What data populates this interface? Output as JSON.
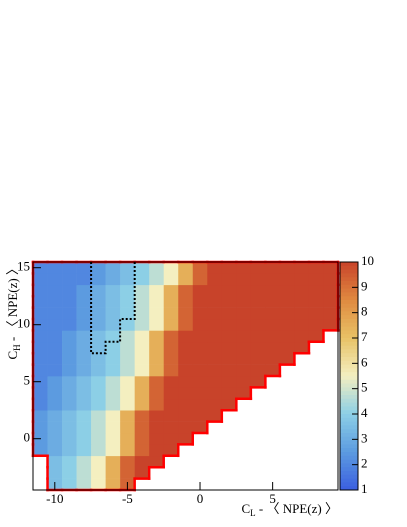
{
  "chart_data": {
    "type": "heatmap",
    "xlabel": {
      "main": "C",
      "sub": "L",
      "rest": " - 〈 NPE(z) 〉"
    },
    "ylabel": {
      "main": "C",
      "sub": "H",
      "rest": " - 〈 NPE(z) 〉"
    },
    "xbins": [
      -11.5,
      -10.5,
      -9.5,
      -8.5,
      -7.5,
      -6.5,
      -5.5,
      -4.5,
      -3.5,
      -2.5,
      -1.5,
      -0.5,
      0.5,
      1.5,
      2.5,
      3.5,
      4.5,
      5.5,
      6.5,
      7.5,
      8.5,
      9.5
    ],
    "ybins": [
      -4.5,
      -3.5,
      -2.5,
      -1.5,
      -0.5,
      0.5,
      1.5,
      2.5,
      3.5,
      4.5,
      5.5,
      6.5,
      7.5,
      8.5,
      9.5,
      10.5,
      11.5,
      12.5,
      13.5,
      14.5,
      15.5
    ],
    "z": [
      [
        null,
        3.5,
        4,
        4.7,
        5.5,
        7.5,
        9.3,
        null,
        null,
        null,
        null,
        null,
        null,
        null,
        null,
        null,
        null,
        null,
        null,
        null,
        null
      ],
      [
        null,
        3.5,
        4,
        4.7,
        5.5,
        7.5,
        9.3,
        10,
        null,
        null,
        null,
        null,
        null,
        null,
        null,
        null,
        null,
        null,
        null,
        null,
        null
      ],
      [
        null,
        3.5,
        4,
        4.7,
        5.5,
        7.5,
        9.3,
        10,
        10,
        null,
        null,
        null,
        null,
        null,
        null,
        null,
        null,
        null,
        null,
        null,
        null
      ],
      [
        2.5,
        3,
        3.5,
        4,
        4.7,
        5.5,
        7.5,
        9.3,
        10,
        10,
        null,
        null,
        null,
        null,
        null,
        null,
        null,
        null,
        null,
        null,
        null
      ],
      [
        2.5,
        3,
        3.5,
        4,
        4.7,
        5.5,
        7.5,
        9.3,
        10,
        10,
        10,
        null,
        null,
        null,
        null,
        null,
        null,
        null,
        null,
        null,
        null
      ],
      [
        2.5,
        3,
        3.5,
        4,
        4.7,
        5.5,
        7.5,
        9.3,
        10,
        10,
        10,
        10,
        null,
        null,
        null,
        null,
        null,
        null,
        null,
        null,
        null
      ],
      [
        2.5,
        3,
        3.5,
        4,
        4.7,
        5.5,
        7.5,
        9.3,
        10,
        10,
        10,
        10,
        10,
        null,
        null,
        null,
        null,
        null,
        null,
        null,
        null
      ],
      [
        2,
        2.5,
        3,
        3.5,
        4,
        4.7,
        5.5,
        7.5,
        9.3,
        10,
        10,
        10,
        10,
        10,
        null,
        null,
        null,
        null,
        null,
        null,
        null
      ],
      [
        2,
        2.5,
        3,
        3.5,
        4,
        4.7,
        5.5,
        7.5,
        9.3,
        10,
        10,
        10,
        10,
        10,
        10,
        null,
        null,
        null,
        null,
        null,
        null
      ],
      [
        2,
        2.5,
        3,
        3.5,
        4,
        4.7,
        5.5,
        7.5,
        9.3,
        10,
        10,
        10,
        10,
        10,
        10,
        10,
        null,
        null,
        null,
        null,
        null
      ],
      [
        2,
        2,
        2.5,
        3,
        3.5,
        4,
        4.7,
        5.5,
        7.5,
        9.3,
        10,
        10,
        10,
        10,
        10,
        10,
        10,
        null,
        null,
        null,
        null
      ],
      [
        2,
        2,
        2.5,
        3,
        3.5,
        4,
        4.7,
        5.5,
        7.5,
        9.3,
        10,
        10,
        10,
        10,
        10,
        10,
        10,
        10,
        null,
        null,
        null
      ],
      [
        2,
        2,
        2.5,
        3,
        3.5,
        4,
        4.7,
        5.5,
        7.5,
        9.3,
        10,
        10,
        10,
        10,
        10,
        10,
        10,
        10,
        10,
        null,
        null
      ],
      [
        2,
        2,
        2.5,
        3,
        3.5,
        4,
        4.7,
        5.5,
        7.5,
        9.3,
        10,
        10,
        10,
        10,
        10,
        10,
        10,
        10,
        10,
        10,
        null
      ],
      [
        2,
        2,
        2,
        2.5,
        3,
        3.5,
        4,
        4.7,
        5.5,
        7.5,
        9.3,
        10,
        10,
        10,
        10,
        10,
        10,
        10,
        10,
        10,
        10
      ],
      [
        2,
        2,
        2,
        2.5,
        3,
        3.5,
        4,
        4.7,
        5.5,
        7.5,
        9.3,
        10,
        10,
        10,
        10,
        10,
        10,
        10,
        10,
        10,
        10
      ],
      [
        2,
        2,
        2,
        2.5,
        3,
        3.5,
        4,
        4.7,
        5.5,
        7.5,
        9.3,
        10,
        10,
        10,
        10,
        10,
        10,
        10,
        10,
        10,
        10
      ],
      [
        2,
        2,
        2,
        2.5,
        3,
        3.5,
        4,
        4.7,
        5.5,
        7.5,
        9.3,
        10,
        10,
        10,
        10,
        10,
        10,
        10,
        10,
        10,
        10
      ],
      [
        2,
        2,
        2,
        2,
        2.5,
        3,
        3.5,
        4,
        4.7,
        5.5,
        7.5,
        9.3,
        10,
        10,
        10,
        10,
        10,
        10,
        10,
        10,
        10
      ],
      [
        2,
        2,
        2,
        2,
        2.5,
        3,
        3.5,
        4,
        4.7,
        5.5,
        7.5,
        9.3,
        10,
        10,
        10,
        10,
        10,
        10,
        10,
        10,
        10
      ]
    ],
    "xlim": [
      -11.5,
      9.5
    ],
    "ylim": [
      -4.5,
      15.5
    ],
    "xticks": [
      -10,
      -5,
      0,
      5
    ],
    "yticks": [
      0,
      5,
      10,
      15
    ],
    "zlim": [
      1,
      10
    ],
    "zticks": [
      1,
      2,
      3,
      4,
      5,
      6,
      7,
      8,
      9,
      10
    ],
    "colorscale": [
      "#3b5fe0",
      "#5c9be0",
      "#8ccfe6",
      "#f4efc0",
      "#e8c266",
      "#e08a40",
      "#c8432a"
    ],
    "boundary_color": "#ff0000"
  }
}
